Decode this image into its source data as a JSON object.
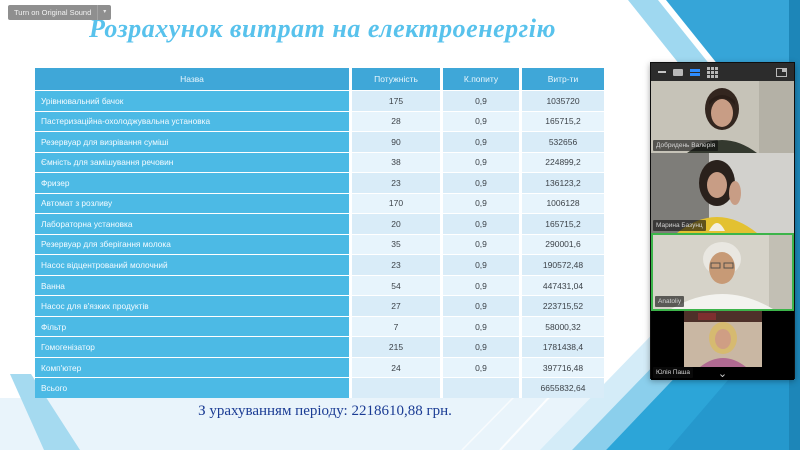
{
  "app": {
    "original_sound_button": "Turn on Original Sound",
    "dropdown_icon": "▾"
  },
  "slide": {
    "title": "Розрахунок витрат на електроенергію",
    "footer_note": "З урахуванням періоду: 2218610,88 грн."
  },
  "table": {
    "headers": [
      "Назва",
      "Потужність",
      "К.попиту",
      "Витр-ти"
    ],
    "rows": [
      [
        "Урівнювальний бачок",
        "175",
        "0,9",
        "1035720"
      ],
      [
        "Пастеризаційна-охолоджувальна установка",
        "28",
        "0,9",
        "165715,2"
      ],
      [
        "Резервуар для визрівання суміші",
        "90",
        "0,9",
        "532656"
      ],
      [
        "Ємність для замішування речовин",
        "38",
        "0,9",
        "224899,2"
      ],
      [
        "Фризер",
        "23",
        "0,9",
        "136123,2"
      ],
      [
        "Автомат з розливу",
        "170",
        "0,9",
        "1006128"
      ],
      [
        "Лабораторна установка",
        "20",
        "0,9",
        "165715,2"
      ],
      [
        "Резервуар для зберігання молока",
        "35",
        "0,9",
        "290001,6"
      ],
      [
        "Насос відцентрований молочний",
        "23",
        "0,9",
        "190572,48"
      ],
      [
        "Ванна",
        "54",
        "0,9",
        "447431,04"
      ],
      [
        "Насос для в'язких продуктів",
        "27",
        "0,9",
        "223715,52"
      ],
      [
        "Фільтр",
        "7",
        "0,9",
        "58000,32"
      ],
      [
        "Гомогенізатор",
        "215",
        "0,9",
        "1781438,4"
      ],
      [
        "Комп'ютер",
        "24",
        "0,9",
        "397716,48"
      ],
      [
        "Всього",
        "",
        "",
        "6655832,64"
      ]
    ]
  },
  "video_panel": {
    "participants": [
      {
        "name": "Добридень Валерія"
      },
      {
        "name": "Марина Базунц"
      },
      {
        "name": "Anatoliy",
        "active_speaker": true
      },
      {
        "name": "Юлія Паша"
      }
    ],
    "collapse_icon": "⌄"
  },
  "colors": {
    "title_blue": "#58c2ec",
    "table_header_bg": "#3fa7d8",
    "name_cell_bg": "#4cbae5",
    "accent_blue": "#2ca5d8",
    "active_speaker_border": "#3cb44a",
    "footer_navy": "#1b3c94"
  }
}
